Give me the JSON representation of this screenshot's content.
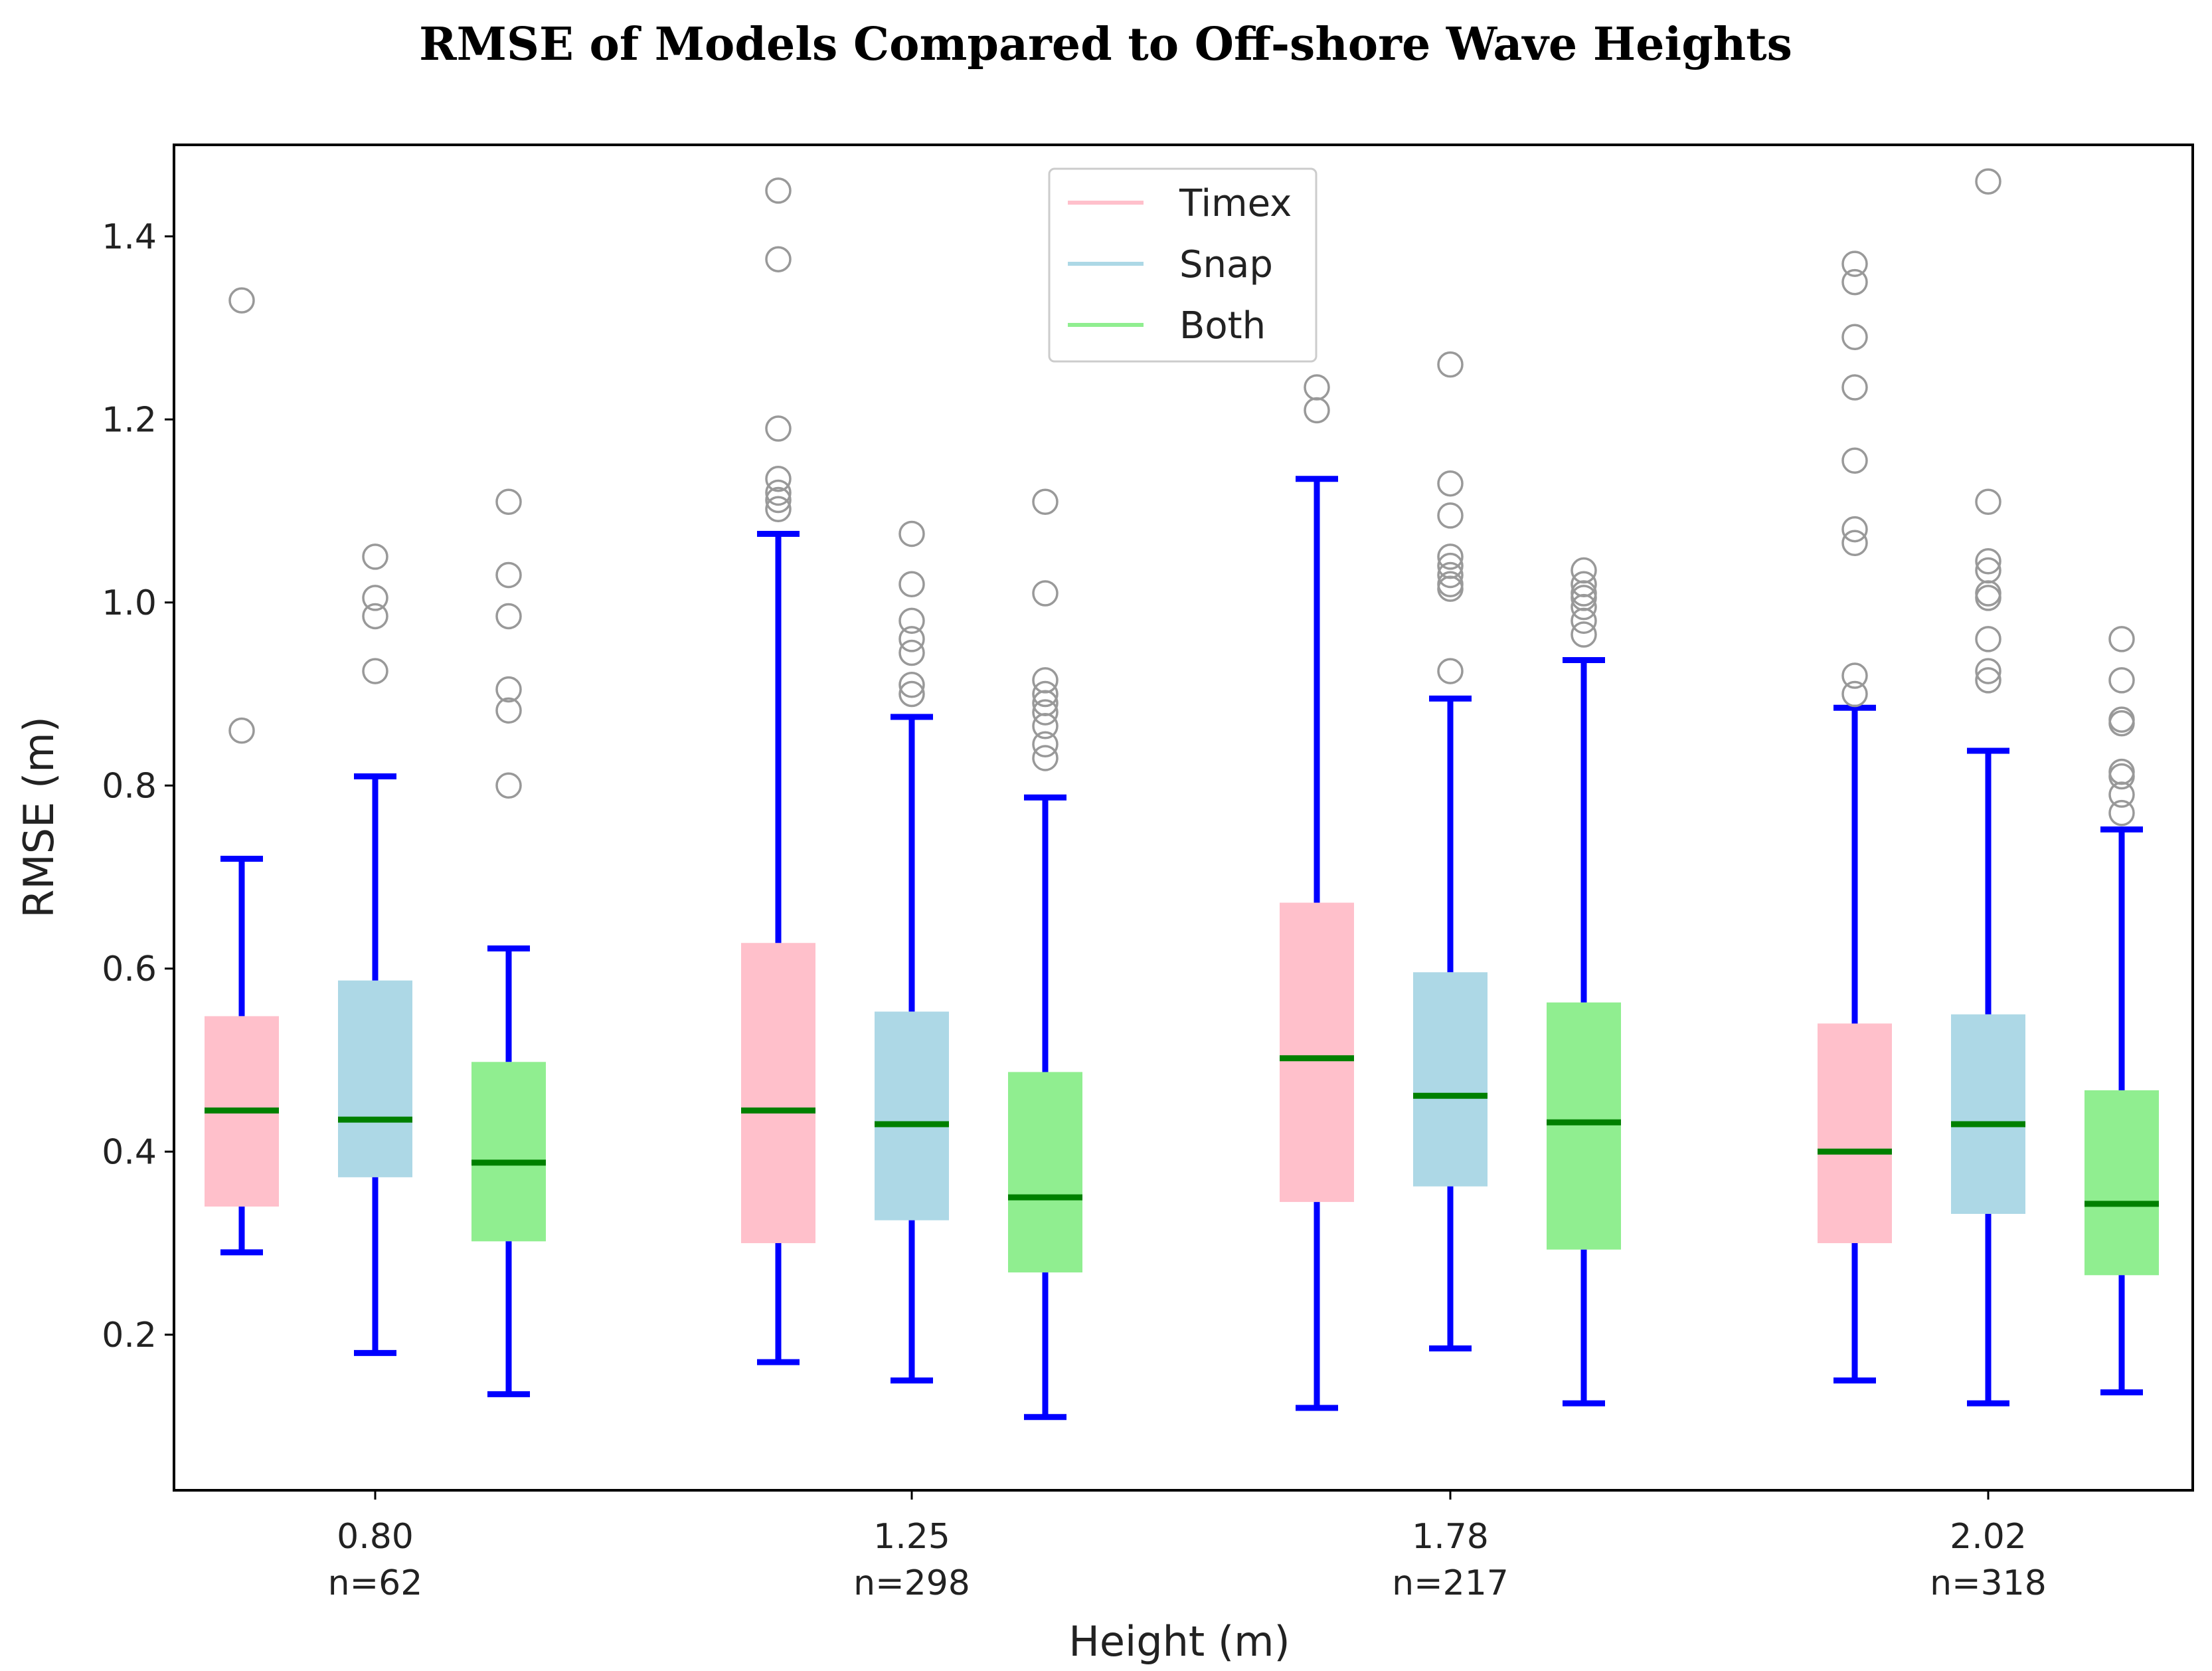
{
  "chart_data": {
    "type": "box",
    "title": "RMSE of Models Compared to Off-shore Wave Heights",
    "xlabel": "Height (m)",
    "ylabel": "RMSE (m)",
    "ylim": [
      0.03,
      1.5
    ],
    "yticks": [
      0.2,
      0.4,
      0.6,
      0.8,
      1.0,
      1.2,
      1.4
    ],
    "ytick_labels": [
      "0.2",
      "0.4",
      "0.6",
      "0.8",
      "1.0",
      "1.2",
      "1.4"
    ],
    "categories": [
      {
        "label": "0.80",
        "n_label": "n=62"
      },
      {
        "label": "1.25",
        "n_label": "n=298"
      },
      {
        "label": "1.78",
        "n_label": "n=217"
      },
      {
        "label": "2.02",
        "n_label": "n=318"
      }
    ],
    "legend": {
      "position": "top-center",
      "entries": [
        {
          "label": "Timex",
          "color": "#ffc0cb"
        },
        {
          "label": "Snap",
          "color": "#add8e6"
        },
        {
          "label": "Both",
          "color": "#90ee90"
        }
      ]
    },
    "whisker_color": "#0000ff",
    "median_color": "#008000",
    "outlier_color": "#999999",
    "series": [
      {
        "name": "Timex",
        "color": "#ffc0cb",
        "boxes": [
          {
            "whislo": 0.29,
            "q1": 0.34,
            "med": 0.445,
            "q3": 0.548,
            "whishi": 0.72,
            "fliers": [
              1.33,
              0.86
            ]
          },
          {
            "whislo": 0.17,
            "q1": 0.3,
            "med": 0.445,
            "q3": 0.628,
            "whishi": 1.075,
            "fliers": [
              1.45,
              1.375,
              1.19,
              1.135,
              1.12,
              1.112,
              1.102
            ]
          },
          {
            "whislo": 0.12,
            "q1": 0.345,
            "med": 0.502,
            "q3": 0.672,
            "whishi": 1.135,
            "fliers": [
              1.235,
              1.21
            ]
          },
          {
            "whislo": 0.15,
            "q1": 0.3,
            "med": 0.4,
            "q3": 0.54,
            "whishi": 0.885,
            "fliers": [
              1.37,
              1.35,
              1.29,
              1.235,
              1.155,
              1.08,
              1.065,
              0.92,
              0.9
            ]
          }
        ]
      },
      {
        "name": "Snap",
        "color": "#add8e6",
        "boxes": [
          {
            "whislo": 0.18,
            "q1": 0.372,
            "med": 0.435,
            "q3": 0.587,
            "whishi": 0.81,
            "fliers": [
              1.05,
              1.005,
              0.985,
              0.925
            ]
          },
          {
            "whislo": 0.15,
            "q1": 0.325,
            "med": 0.43,
            "q3": 0.553,
            "whishi": 0.875,
            "fliers": [
              1.075,
              1.02,
              0.98,
              0.96,
              0.945,
              0.91,
              0.9
            ]
          },
          {
            "whislo": 0.185,
            "q1": 0.362,
            "med": 0.461,
            "q3": 0.596,
            "whishi": 0.895,
            "fliers": [
              1.26,
              1.13,
              1.095,
              1.05,
              1.04,
              1.03,
              1.02,
              1.015,
              0.925
            ]
          },
          {
            "whislo": 0.125,
            "q1": 0.332,
            "med": 0.43,
            "q3": 0.55,
            "whishi": 0.838,
            "fliers": [
              1.46,
              1.11,
              1.045,
              1.035,
              1.01,
              1.005,
              0.96,
              0.925,
              0.915
            ]
          }
        ]
      },
      {
        "name": "Both",
        "color": "#90ee90",
        "boxes": [
          {
            "whislo": 0.135,
            "q1": 0.302,
            "med": 0.388,
            "q3": 0.498,
            "whishi": 0.622,
            "fliers": [
              1.11,
              1.03,
              0.985,
              0.905,
              0.882,
              0.8
            ]
          },
          {
            "whislo": 0.11,
            "q1": 0.268,
            "med": 0.35,
            "q3": 0.487,
            "whishi": 0.787,
            "fliers": [
              1.11,
              1.01,
              0.915,
              0.9,
              0.89,
              0.88,
              0.865,
              0.845,
              0.83
            ]
          },
          {
            "whislo": 0.125,
            "q1": 0.293,
            "med": 0.432,
            "q3": 0.563,
            "whishi": 0.937,
            "fliers": [
              1.035,
              1.02,
              1.01,
              1.005,
              0.995,
              0.98,
              0.965
            ]
          },
          {
            "whislo": 0.137,
            "q1": 0.265,
            "med": 0.343,
            "q3": 0.467,
            "whishi": 0.752,
            "fliers": [
              0.96,
              0.915,
              0.872,
              0.868,
              0.815,
              0.81,
              0.79,
              0.77
            ]
          }
        ]
      }
    ]
  }
}
